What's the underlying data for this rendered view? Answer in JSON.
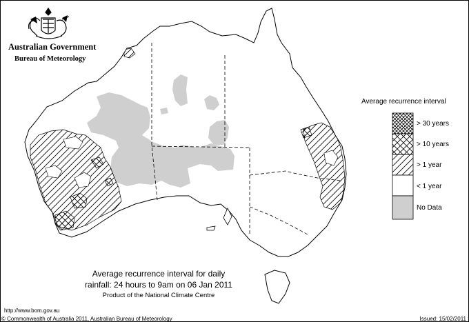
{
  "agency": {
    "government": "Australian Government",
    "bureau": "Bureau of Meteorology",
    "logo_icon": "coat-of-arms-icon"
  },
  "legend": {
    "title": "Average recurrence interval",
    "items": [
      {
        "label": "> 30 years",
        "pattern": "dense-crosshatch"
      },
      {
        "label": "> 10 years",
        "pattern": "crosshatch"
      },
      {
        "label": "> 1 year",
        "pattern": "diagonal-hatch"
      },
      {
        "label": "< 1 year",
        "pattern": "blank"
      },
      {
        "label": "No Data",
        "pattern": "grey-fill"
      }
    ]
  },
  "caption": {
    "line1": "Average recurrence interval for daily",
    "line2": "rainfall: 24 hours to 9am on 06 Jan 2011",
    "line3": "Product of the National Climate Centre"
  },
  "footer": {
    "url": "http://www.bom.gov.au",
    "copyright": "© Commonwealth of Australia 2011, Australian Bureau of Meteorology",
    "issued": "Issued: 15/02/2011"
  },
  "colors": {
    "no_data": "#cfcfcf",
    "outline": "#000000"
  }
}
